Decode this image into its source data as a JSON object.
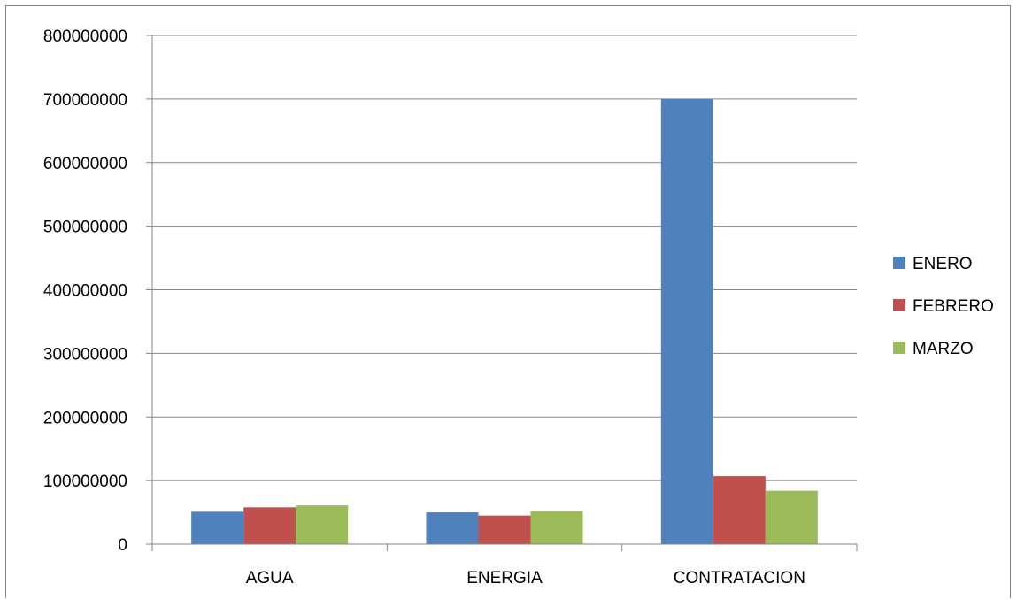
{
  "chart_data": {
    "type": "bar",
    "title": "",
    "xlabel": "",
    "ylabel": "",
    "categories": [
      "AGUA",
      "ENERGIA",
      "CONTRATACION"
    ],
    "series": [
      {
        "name": "ENERO",
        "color": "#4f81bd",
        "values": [
          51000000,
          50000000,
          700000000
        ]
      },
      {
        "name": "FEBRERO",
        "color": "#c0504d",
        "values": [
          58000000,
          45000000,
          107000000
        ]
      },
      {
        "name": "MARZO",
        "color": "#9bbb59",
        "values": [
          61000000,
          52000000,
          84000000
        ]
      }
    ],
    "ylim": [
      0,
      800000000
    ],
    "yticks": [
      "0",
      "100000000",
      "200000000",
      "300000000",
      "400000000",
      "500000000",
      "600000000",
      "700000000",
      "800000000"
    ],
    "grid": true,
    "legend_position": "right"
  }
}
